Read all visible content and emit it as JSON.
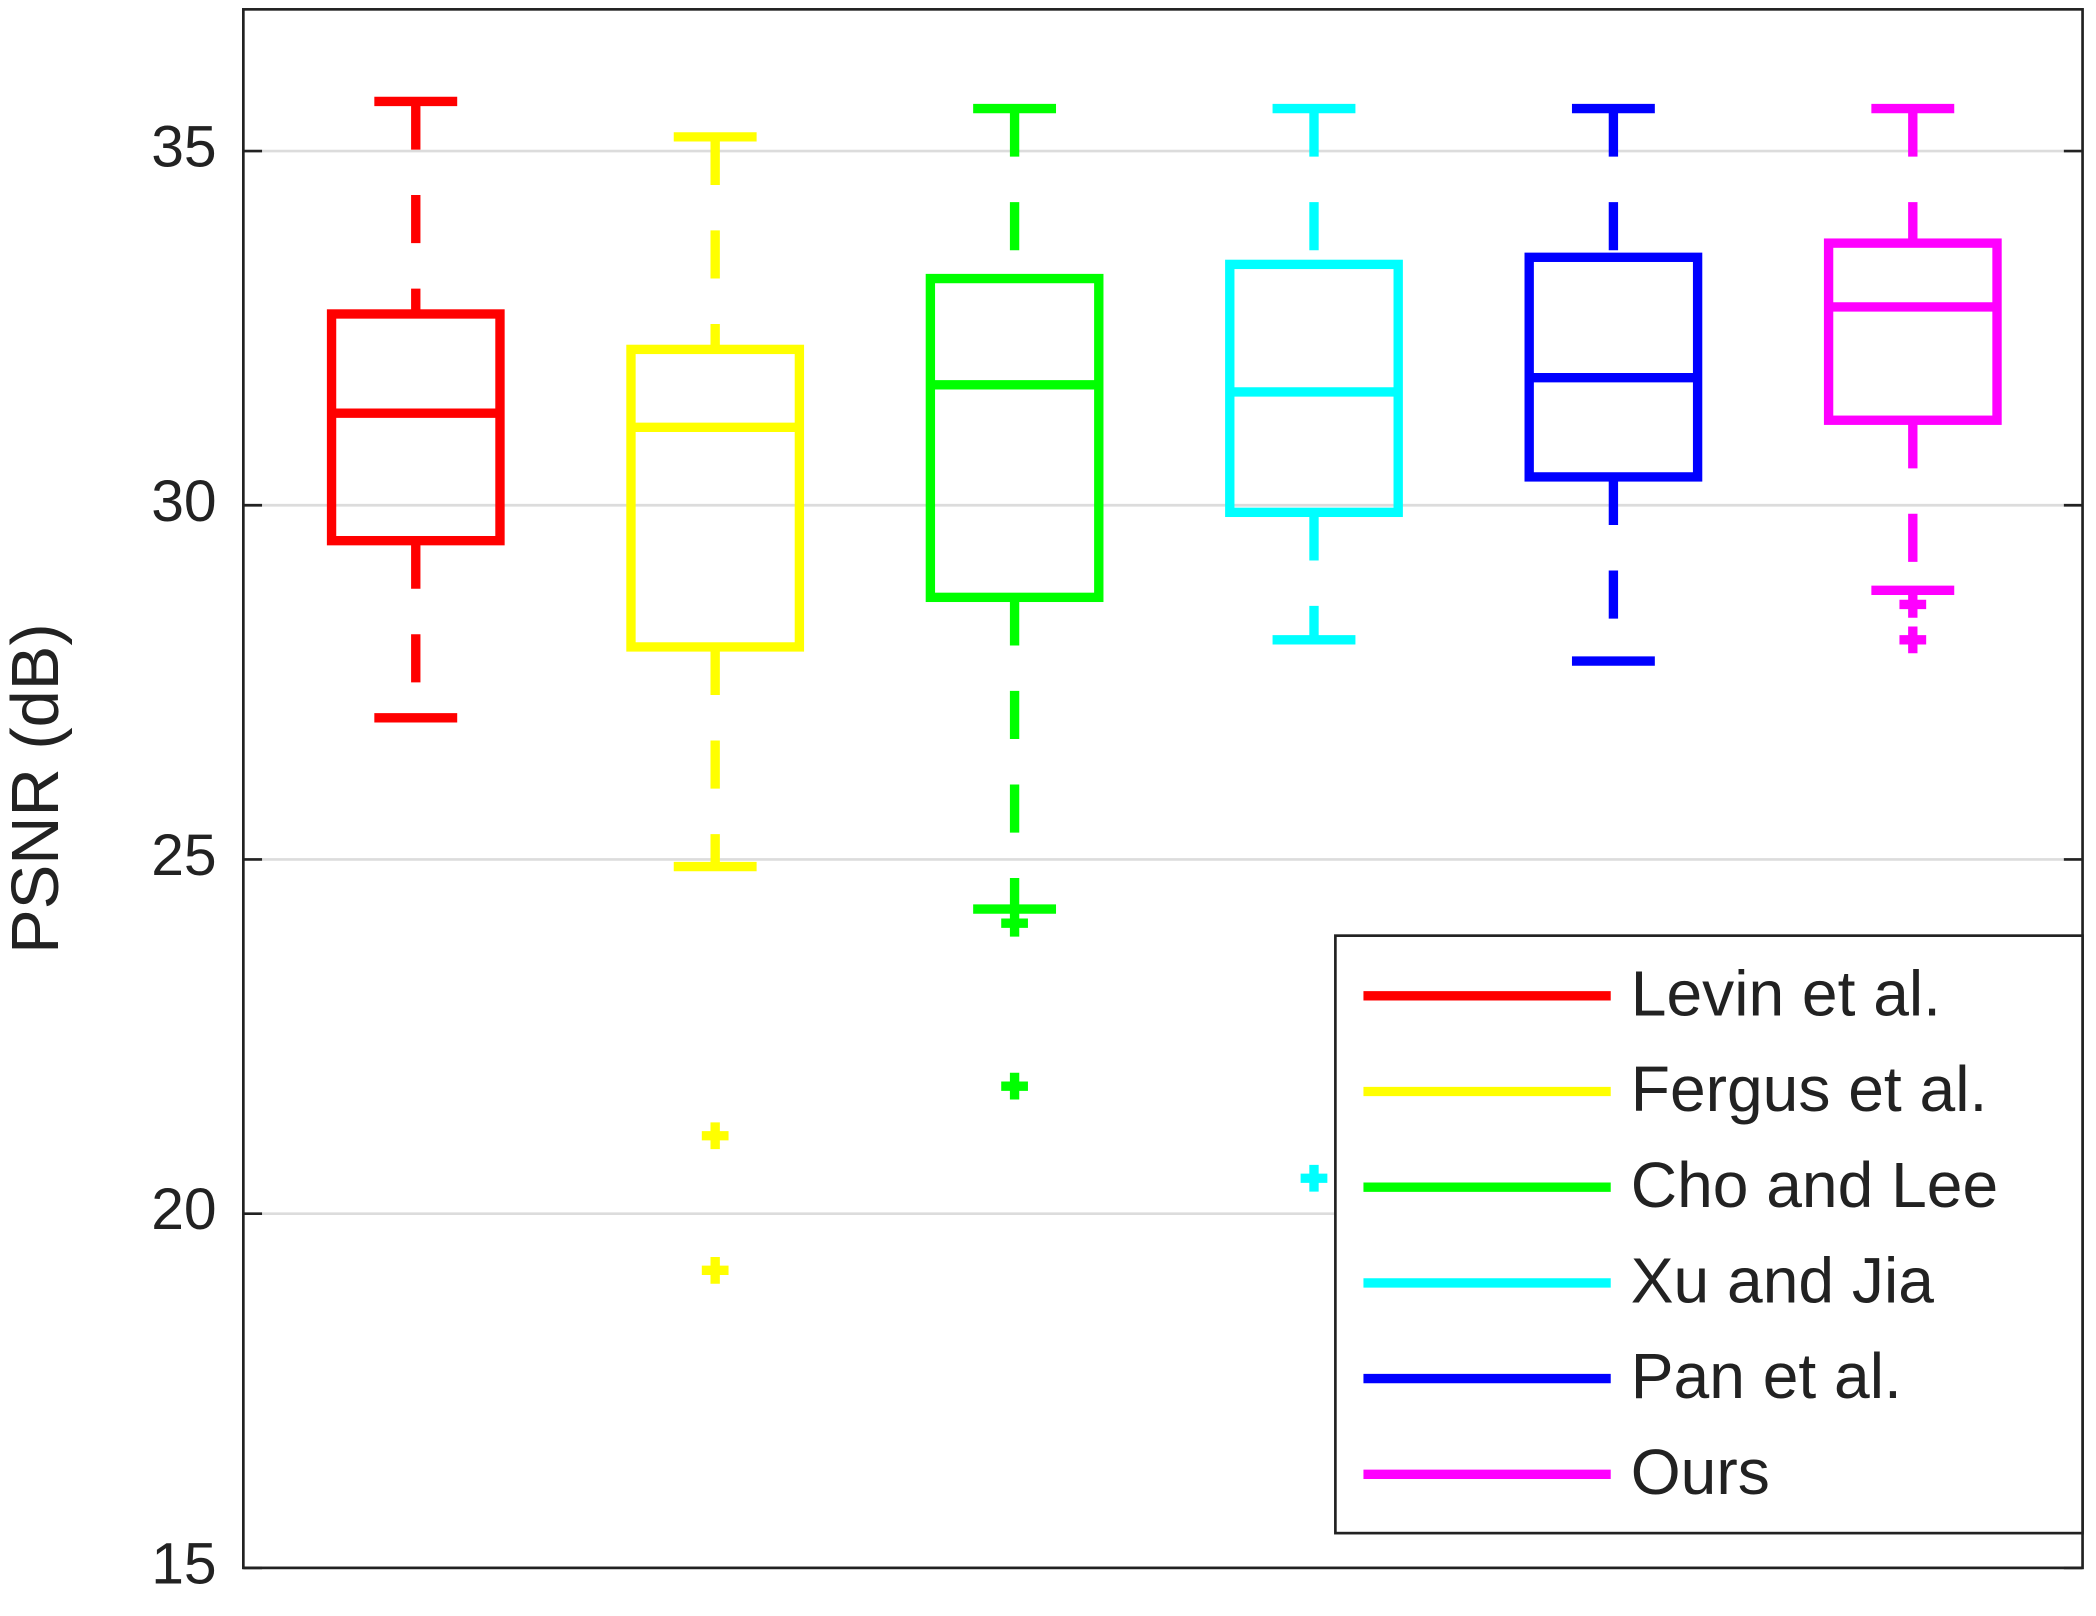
{
  "chart_data": {
    "type": "box",
    "y_label": "PSNR (dB)",
    "ylim": [
      15,
      37
    ],
    "yticks": [
      15,
      20,
      25,
      30,
      35
    ],
    "grid": true,
    "legend": "southeast",
    "series": [
      {
        "name": "Levin et al.",
        "color": "#ff0000",
        "min": 27.0,
        "q1": 29.5,
        "median": 31.3,
        "q3": 32.7,
        "max": 35.7,
        "outliers": []
      },
      {
        "name": "Fergus et al.",
        "color": "#ffff00",
        "min": 24.9,
        "q1": 28.0,
        "median": 31.1,
        "q3": 32.2,
        "max": 35.2,
        "outliers": [
          21.1,
          19.2
        ]
      },
      {
        "name": "Cho and Lee",
        "color": "#00ff00",
        "min": 24.3,
        "q1": 28.7,
        "median": 31.7,
        "q3": 33.2,
        "max": 35.6,
        "outliers": [
          24.1,
          21.8
        ]
      },
      {
        "name": "Xu and Jia",
        "color": "#00ffff",
        "min": 28.1,
        "q1": 29.9,
        "median": 31.6,
        "q3": 33.4,
        "max": 35.6,
        "outliers": [
          20.5
        ]
      },
      {
        "name": "Pan et al.",
        "color": "#0000ff",
        "min": 27.8,
        "q1": 30.4,
        "median": 31.8,
        "q3": 33.5,
        "max": 35.6,
        "outliers": []
      },
      {
        "name": "Ours",
        "color": "#ff00ff",
        "min": 28.8,
        "q1": 31.2,
        "median": 32.8,
        "q3": 33.7,
        "max": 35.6,
        "outliers": [
          28.6,
          28.1
        ]
      }
    ]
  }
}
